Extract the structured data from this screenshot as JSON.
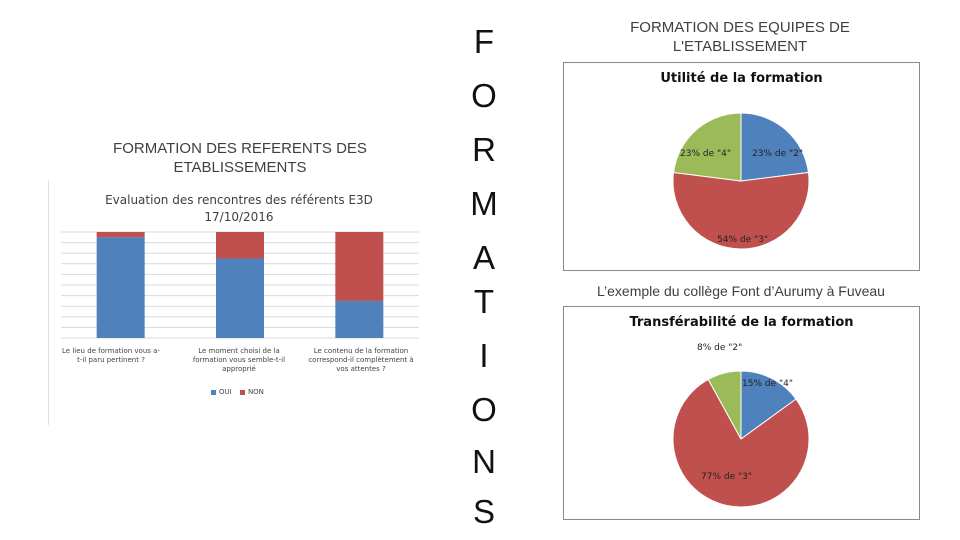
{
  "left_panel": {
    "heading": "FORMATION DES REFERENTS DES ETABLISSEMENTS",
    "bar_chart_title": "Evaluation des rencontres des référents E3D 17/10/2016"
  },
  "vertical_word": [
    "F",
    "O",
    "R",
    "M",
    "A",
    "T",
    "I",
    "O",
    "N",
    "S"
  ],
  "right_panel": {
    "heading": "FORMATION DES EQUIPES DE L'ETABLISSEMENT",
    "pie1_title": "Utilité de la formation",
    "example_caption": "L’exemple du collège Font d’Aurumy à Fuveau",
    "pie2_title": "Transférabilité de la formation"
  },
  "colors": {
    "blue": "#4f81bd",
    "red": "#c0504d",
    "green": "#9bbb59",
    "grid": "#d9d9d9"
  },
  "chart_data": [
    {
      "type": "bar",
      "stacked": true,
      "title": "Evaluation des rencontres des référents E3D 17/10/2016",
      "categories": [
        "Le lieu de formation vous a-t-il paru pertinent ?",
        "Le moment choisi de la formation vous semble-t-il approprié",
        "Le contenu de la formation correspond-il complètement à vos attentes ?"
      ],
      "series": [
        {
          "name": "OUI",
          "values": [
            95,
            75,
            35
          ]
        },
        {
          "name": "NON",
          "values": [
            5,
            25,
            65
          ]
        }
      ],
      "ylim": [
        0,
        100
      ],
      "grid": true,
      "legend": "bottom"
    },
    {
      "type": "pie",
      "title": "Utilité de la formation",
      "slices": [
        {
          "label": "23% de \"2\"",
          "value": 23,
          "color": "#4f81bd"
        },
        {
          "label": "54% de \"3\"",
          "value": 54,
          "color": "#c0504d"
        },
        {
          "label": "23% de \"4\"",
          "value": 23,
          "color": "#9bbb59"
        }
      ]
    },
    {
      "type": "pie",
      "title": "Transférabilité de la formation",
      "slices": [
        {
          "label": "15% de \"4\"",
          "value": 15,
          "color": "#4f81bd"
        },
        {
          "label": "77% de \"3\"",
          "value": 77,
          "color": "#c0504d"
        },
        {
          "label": "8% de \"2\"",
          "value": 8,
          "color": "#9bbb59"
        }
      ]
    }
  ]
}
